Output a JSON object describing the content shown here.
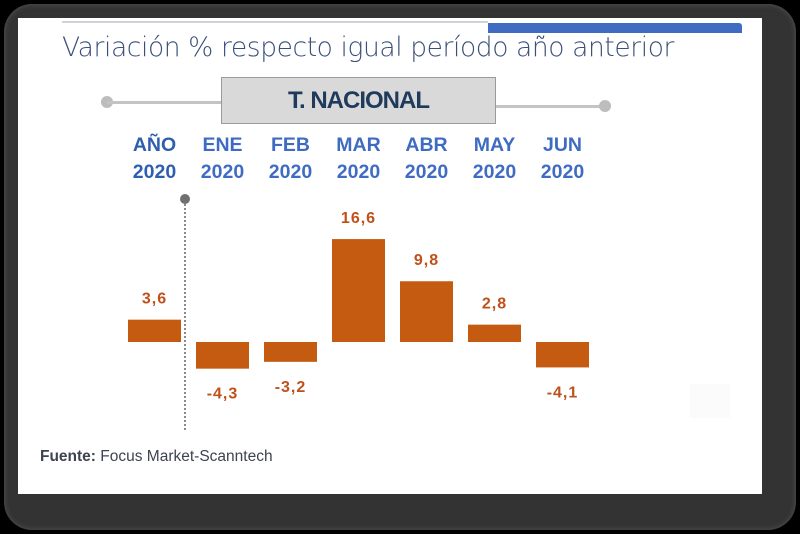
{
  "title": "Variación % respecto igual período año anterior",
  "region_label": "T. NACIONAL",
  "source": {
    "label": "Fuente:",
    "text": "Focus Market-Scanntech"
  },
  "colors": {
    "bar": "#c55a11",
    "label": "#c0501a",
    "header": "#3f6cc2",
    "title": "#3a4f7a",
    "accent": "#3f6cc2"
  },
  "chart_data": {
    "type": "bar",
    "title": "Variación % respecto igual período año anterior",
    "subtitle": "T. NACIONAL",
    "xlabel": "",
    "ylabel": "",
    "categories": [
      {
        "line1": "AÑO",
        "line2": "2020"
      },
      {
        "line1": "ENE",
        "line2": "2020"
      },
      {
        "line1": "FEB",
        "line2": "2020"
      },
      {
        "line1": "MAR",
        "line2": "2020"
      },
      {
        "line1": "ABR",
        "line2": "2020"
      },
      {
        "line1": "MAY",
        "line2": "2020"
      },
      {
        "line1": "JUN",
        "line2": "2020"
      }
    ],
    "values": [
      3.6,
      -4.3,
      -3.2,
      16.6,
      9.8,
      2.8,
      -4.1
    ],
    "labels": [
      "3,6",
      "-4,3",
      "-3,2",
      "16,6",
      "9,8",
      "2,8",
      "-4,1"
    ],
    "ylim": [
      -6,
      18
    ],
    "grid": false,
    "legend": "none"
  }
}
